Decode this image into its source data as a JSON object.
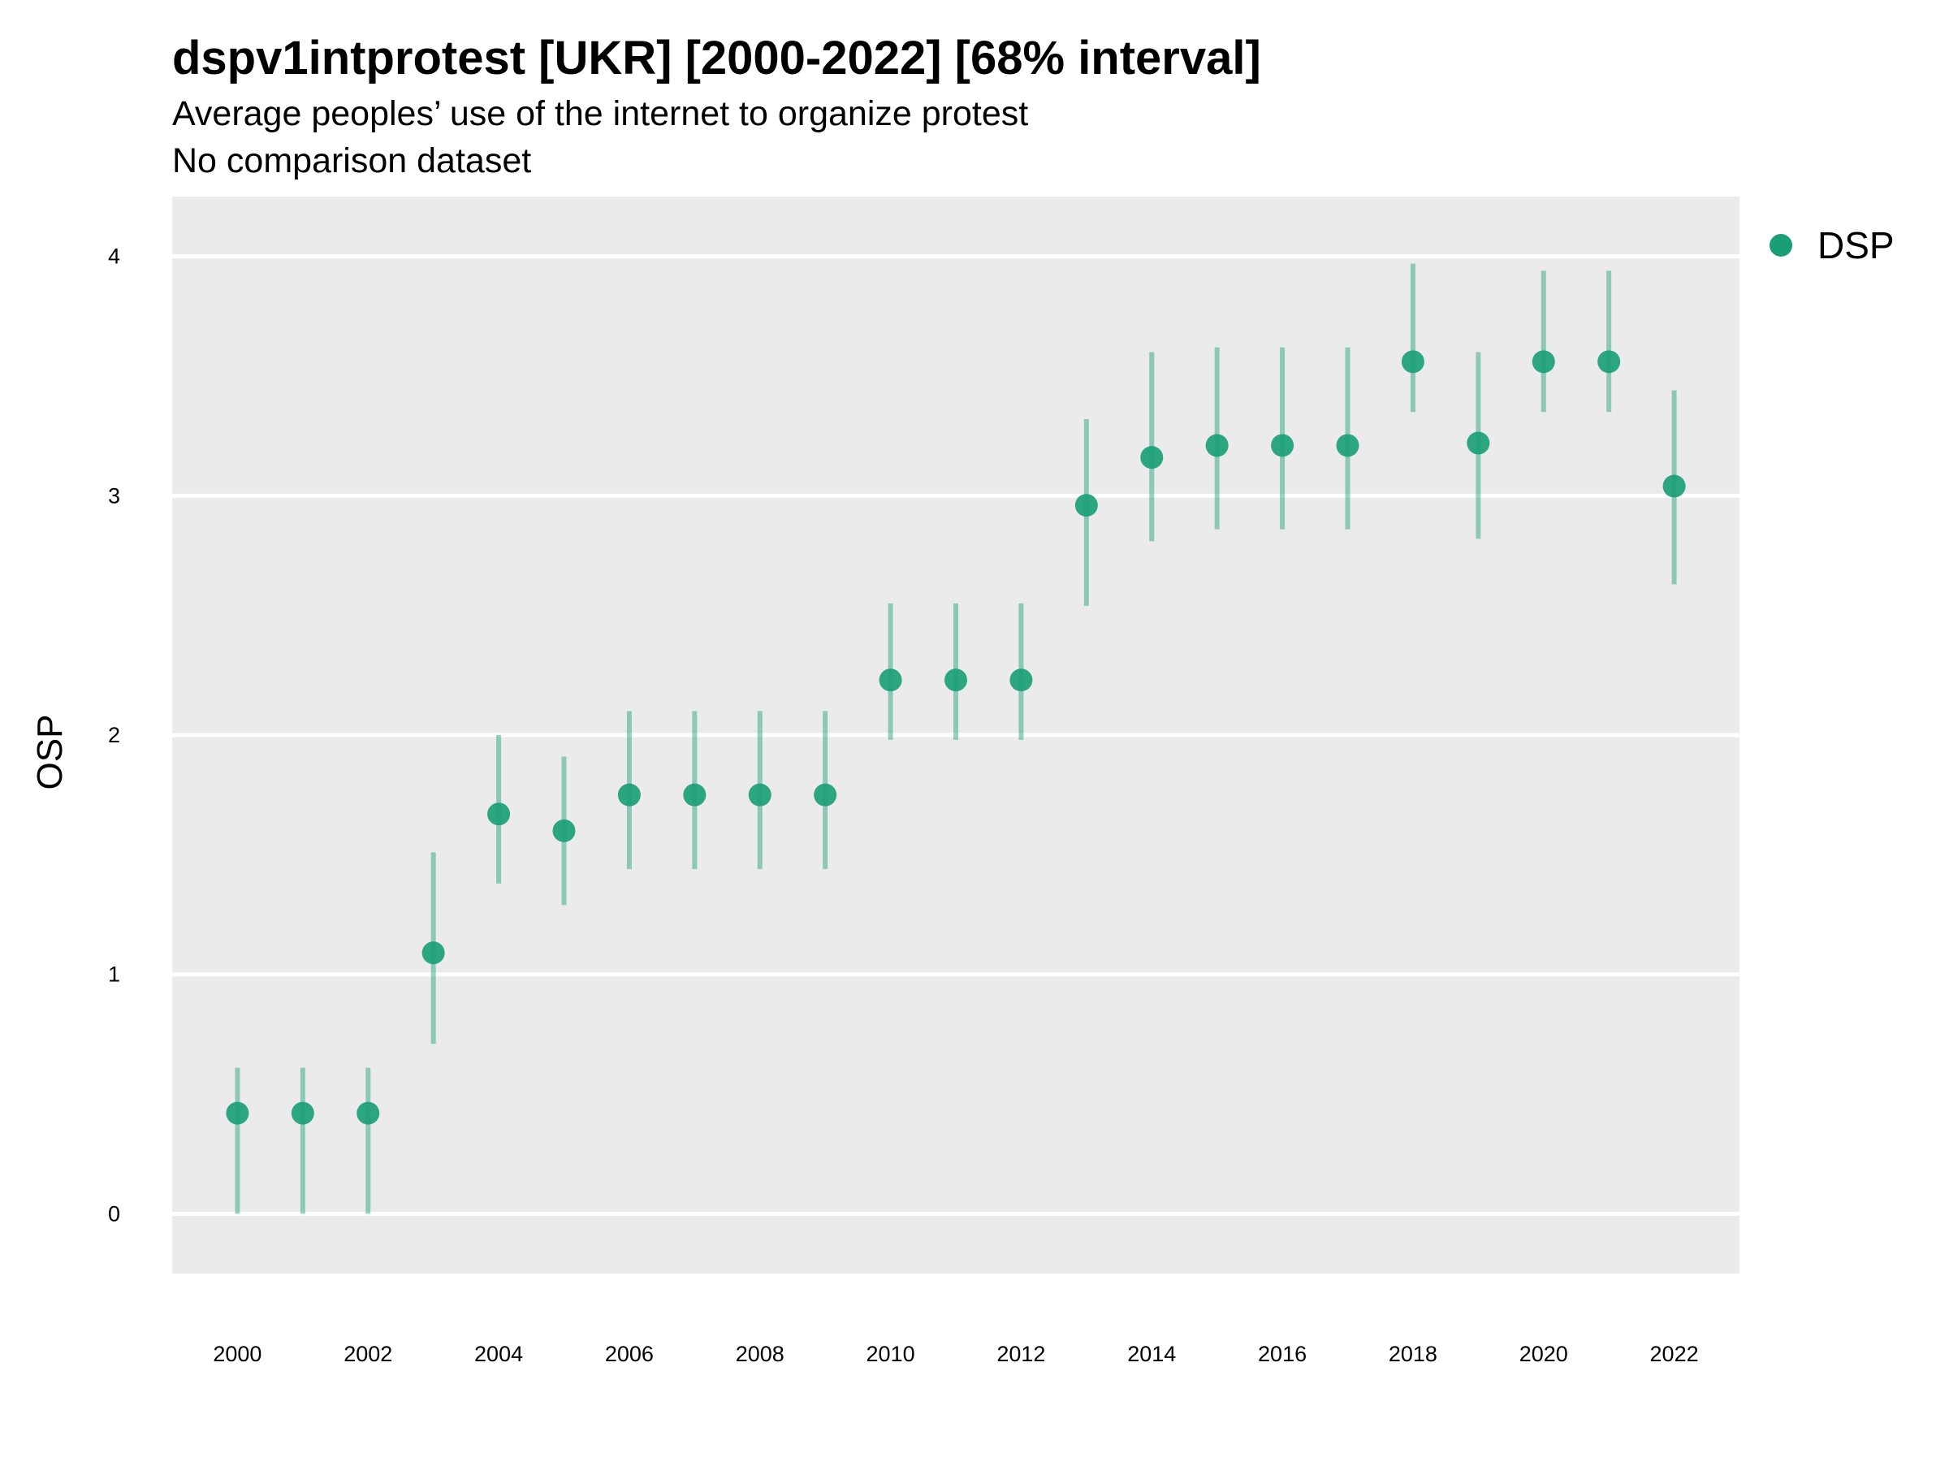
{
  "chart_data": {
    "type": "scatter",
    "title": "dspv1intprotest [UKR] [2000-2022] [68% interval]",
    "subtitle": "Average peoples’ use of the internet to organize protest",
    "subtitle2": "No comparison dataset",
    "xlabel": "",
    "ylabel": "OSP",
    "xlim": [
      1999,
      2023
    ],
    "ylim": [
      -0.25,
      4.25
    ],
    "x_ticks": [
      2000,
      2002,
      2004,
      2006,
      2008,
      2010,
      2012,
      2014,
      2016,
      2018,
      2020,
      2022
    ],
    "y_ticks": [
      0,
      1,
      2,
      3,
      4
    ],
    "grid": true,
    "legend_position": "top-right",
    "series": [
      {
        "name": "DSP",
        "color": "#1b9e77",
        "x": [
          2000,
          2001,
          2002,
          2003,
          2004,
          2005,
          2006,
          2007,
          2008,
          2009,
          2010,
          2011,
          2012,
          2013,
          2014,
          2015,
          2016,
          2017,
          2018,
          2019,
          2020,
          2021,
          2022
        ],
        "y": [
          0.42,
          0.42,
          0.42,
          1.09,
          1.67,
          1.6,
          1.75,
          1.75,
          1.75,
          1.75,
          2.23,
          2.23,
          2.23,
          2.96,
          3.16,
          3.21,
          3.21,
          3.21,
          3.56,
          3.22,
          3.56,
          3.56,
          3.04
        ],
        "lower": [
          0.0,
          0.0,
          0.0,
          0.71,
          1.38,
          1.29,
          1.44,
          1.44,
          1.44,
          1.44,
          1.98,
          1.98,
          1.98,
          2.54,
          2.81,
          2.86,
          2.86,
          2.86,
          3.35,
          2.82,
          3.35,
          3.35,
          2.63
        ],
        "upper": [
          0.61,
          0.61,
          0.61,
          1.51,
          2.0,
          1.91,
          2.1,
          2.1,
          2.1,
          2.1,
          2.55,
          2.55,
          2.55,
          3.32,
          3.6,
          3.62,
          3.62,
          3.62,
          3.97,
          3.6,
          3.94,
          3.94,
          3.44
        ]
      }
    ]
  }
}
